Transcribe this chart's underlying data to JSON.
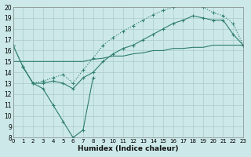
{
  "xlabel": "Humidex (Indice chaleur)",
  "background_color": "#cce8e8",
  "grid_color": "#c8e0dc",
  "line_color": "#2e7d6e",
  "xlim": [
    0,
    23
  ],
  "ylim": [
    8,
    20
  ],
  "yticks": [
    8,
    9,
    10,
    11,
    12,
    13,
    14,
    15,
    16,
    17,
    18,
    19,
    20
  ],
  "xticks": [
    0,
    1,
    2,
    3,
    4,
    5,
    6,
    7,
    8,
    9,
    10,
    11,
    12,
    13,
    14,
    15,
    16,
    17,
    18,
    19,
    20,
    21,
    22,
    23
  ],
  "curve_top_x": [
    0,
    1,
    2,
    3,
    4,
    5,
    6,
    7,
    8,
    9,
    10,
    11,
    12,
    13,
    14,
    15,
    16,
    17,
    18,
    19,
    20,
    21,
    22,
    23
  ],
  "curve_top_y": [
    16.5,
    14.5,
    13.0,
    13.2,
    13.5,
    13.8,
    13.0,
    14.2,
    15.3,
    16.5,
    17.2,
    17.8,
    18.3,
    18.8,
    19.3,
    19.7,
    20.0,
    20.3,
    20.3,
    20.0,
    19.5,
    19.2,
    18.5,
    16.5
  ],
  "curve_mid_x": [
    0,
    1,
    2,
    3,
    4,
    5,
    6,
    7,
    8,
    9,
    10,
    11,
    12,
    13,
    14,
    15,
    16,
    17,
    18,
    19,
    20,
    21,
    22,
    23
  ],
  "curve_mid_y": [
    16.5,
    14.5,
    13.0,
    13.0,
    13.2,
    13.0,
    12.5,
    13.5,
    14.0,
    15.0,
    15.7,
    16.2,
    16.5,
    17.0,
    17.5,
    18.0,
    18.5,
    18.8,
    19.2,
    19.0,
    18.8,
    18.8,
    17.5,
    16.5
  ],
  "curve_bot_x": [
    0,
    1,
    2,
    3,
    4,
    5,
    6,
    7,
    8,
    9,
    10,
    11,
    12,
    13,
    14,
    15,
    16,
    17,
    18,
    19,
    20,
    21,
    22,
    23
  ],
  "curve_bot_y": [
    15.0,
    15.0,
    15.0,
    15.0,
    15.0,
    15.0,
    15.0,
    15.0,
    15.2,
    15.3,
    15.5,
    15.5,
    15.7,
    15.8,
    16.0,
    16.0,
    16.2,
    16.2,
    16.3,
    16.3,
    16.5,
    16.5,
    16.5,
    16.5
  ],
  "curve_dip_x": [
    1,
    2,
    3,
    4,
    5,
    6,
    7,
    8
  ],
  "curve_dip_y": [
    14.5,
    13.0,
    12.5,
    11.0,
    9.5,
    8.0,
    8.7,
    13.5
  ]
}
